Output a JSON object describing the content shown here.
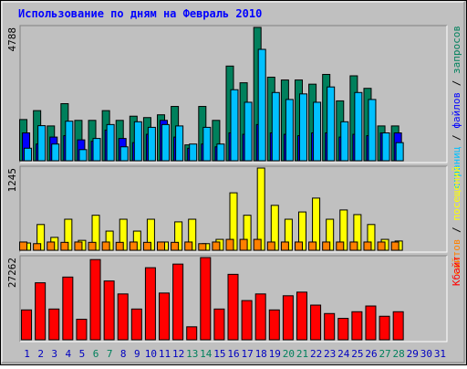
{
  "chart_data": {
    "type": "bar",
    "title": "Использование по дням на Февраль 2010",
    "categories": [
      "1",
      "2",
      "3",
      "4",
      "5",
      "6",
      "7",
      "8",
      "9",
      "10",
      "11",
      "12",
      "13",
      "14",
      "15",
      "16",
      "17",
      "18",
      "19",
      "20",
      "21",
      "22",
      "23",
      "24",
      "25",
      "26",
      "27",
      "28",
      "29",
      "30",
      "31"
    ],
    "category_colors": [
      "#0000c0",
      "#0000c0",
      "#0000c0",
      "#0000c0",
      "#0000c0",
      "#00805c",
      "#00805c",
      "#0000c0",
      "#0000c0",
      "#0000c0",
      "#0000c0",
      "#0000c0",
      "#00805c",
      "#00805c",
      "#0000c0",
      "#0000c0",
      "#0000c0",
      "#0000c0",
      "#0000c0",
      "#00805c",
      "#00805c",
      "#0000c0",
      "#0000c0",
      "#0000c0",
      "#0000c0",
      "#0000c0",
      "#00805c",
      "#00805c",
      "#0000c0",
      "#0000c0",
      "#0000c0"
    ],
    "legend_separator": " / ",
    "panels": [
      {
        "ylim": [
          0,
          4788
        ],
        "yticks": [
          4788
        ],
        "series": [
          {
            "name": "запросов",
            "color": "#00805c",
            "values": [
              1480,
              1800,
              1250,
              2050,
              1450,
              1450,
              1800,
              1450,
              1600,
              1550,
              1650,
              1950,
              570,
              1950,
              1450,
              3400,
              2800,
              4788,
              3000,
              2900,
              2900,
              2750,
              3100,
              2150,
              3050,
              2600,
              1250,
              1250,
              null,
              null,
              null
            ]
          },
          {
            "name": "файлов",
            "color": "#0000ff",
            "values": [
              1000,
              600,
              850,
              900,
              750,
              700,
              1100,
              800,
              650,
              950,
              1450,
              850,
              450,
              600,
              500,
              1000,
              950,
              1300,
              1000,
              950,
              900,
              1000,
              1000,
              850,
              950,
              900,
              1000,
              1000,
              null,
              null,
              null
            ]
          },
          {
            "name": "страниц",
            "color": "#00c0ff",
            "values": [
              450,
              1260,
              600,
              1420,
              400,
              800,
              1300,
              500,
              1400,
              1200,
              1300,
              1250,
              600,
              1200,
              600,
              2550,
              2100,
              4000,
              2450,
              2200,
              2400,
              2100,
              2650,
              1400,
              2450,
              2200,
              1000,
              650,
              null,
              null,
              null
            ]
          }
        ]
      },
      {
        "ylim": [
          0,
          1245
        ],
        "yticks": [
          1245
        ],
        "series": [
          {
            "name": "посещений",
            "color": "#ffff00",
            "values": [
              110,
              390,
              195,
              470,
              150,
              530,
              290,
              470,
              290,
              470,
              125,
              430,
              470,
              100,
              165,
              870,
              530,
              1245,
              680,
              470,
              580,
              790,
              470,
              610,
              540,
              390,
              165,
              140,
              null,
              null,
              null
            ]
          },
          {
            "name": "сайтов",
            "color": "#ff8000",
            "values": [
              125,
              100,
              125,
              120,
              125,
              120,
              125,
              120,
              125,
              120,
              125,
              120,
              125,
              100,
              125,
              165,
              165,
              165,
              125,
              125,
              125,
              125,
              125,
              125,
              125,
              125,
              125,
              125,
              null,
              null,
              null
            ]
          }
        ]
      },
      {
        "ylim": [
          0,
          27262
        ],
        "yticks": [
          27262
        ],
        "series": [
          {
            "name": "Кбайт",
            "color": "#ff0000",
            "values": [
              9900,
              18900,
              10200,
              20800,
              6800,
              26600,
              19500,
              15200,
              10200,
              23900,
              15500,
              25100,
              4300,
              27262,
              10200,
              21700,
              13000,
              15200,
              9900,
              14600,
              15800,
              11500,
              8700,
              7100,
              9300,
              11200,
              7800,
              9300,
              null,
              null,
              null
            ]
          }
        ]
      }
    ]
  }
}
